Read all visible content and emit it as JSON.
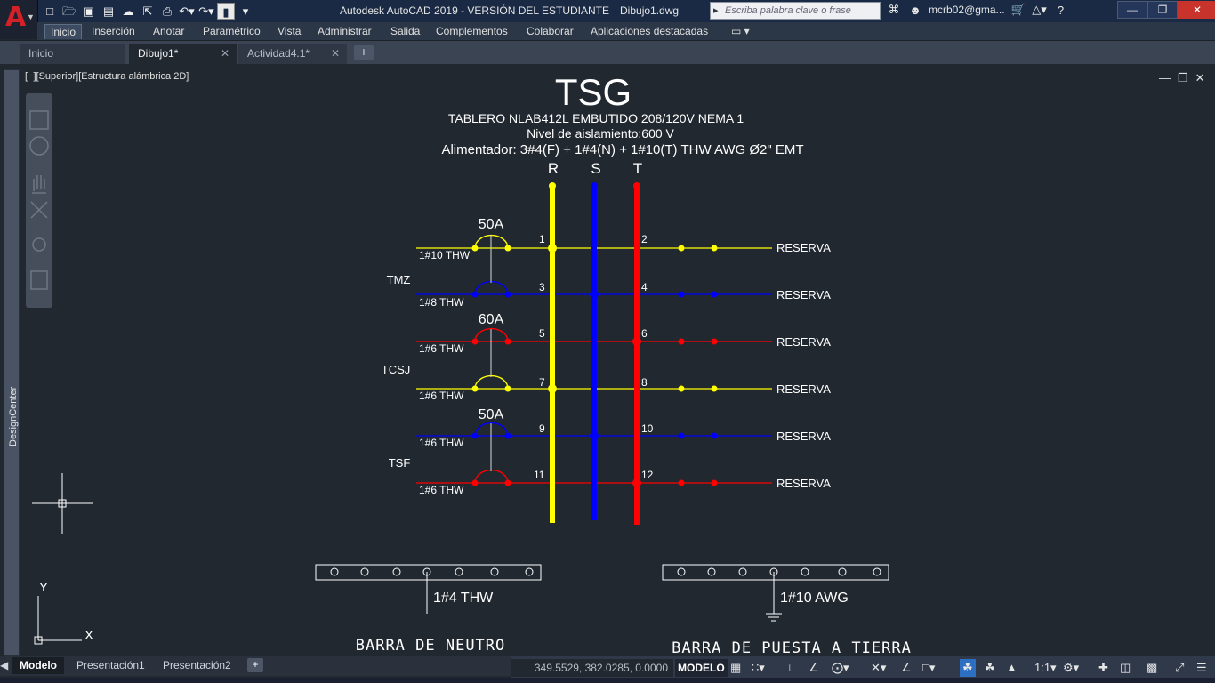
{
  "app": {
    "logo_letter": "A",
    "title": "Autodesk AutoCAD 2019 - VERSIÓN DEL ESTUDIANTE",
    "document": "Dibujo1.dwg",
    "search_placeholder": "Escriba palabra clave o frase",
    "user": "mcrb02@gma...",
    "help": "?"
  },
  "qat_icons": [
    "new-icon",
    "open-icon",
    "save-icon",
    "save-as-icon",
    "cloud-icon",
    "export-icon",
    "print-icon",
    "undo-icon",
    "redo-icon",
    "workspace-icon",
    "caret-icon"
  ],
  "ribbon_tabs": [
    "Inicio",
    "Inserción",
    "Anotar",
    "Paramétrico",
    "Vista",
    "Administrar",
    "Salida",
    "Complementos",
    "Colaborar",
    "Aplicaciones destacadas"
  ],
  "doc_tabs": [
    {
      "label": "Inicio",
      "active": false
    },
    {
      "label": "Dibujo1*",
      "active": true
    },
    {
      "label": "Actividad4.1*",
      "active": false
    }
  ],
  "side_panel": "DesignCenter",
  "viewport_label": "[−][Superior][Estructura alámbrica 2D]",
  "drawing": {
    "title": "TSG",
    "subtitle1": "TABLERO NLAB412L EMBUTIDO 208/120V NEMA 1",
    "subtitle2": "Nivel de aislamiento:600 V",
    "subtitle3": "Alimentador: 3#4(F) + 1#4(N) + 1#10(T) THW AWG Ø2\" EMT",
    "phases": [
      "R",
      "S",
      "T"
    ],
    "breakers": [
      "50A",
      "60A",
      "50A"
    ],
    "groups": [
      "TMZ",
      "TCSJ",
      "TSF"
    ],
    "circuits_left": [
      {
        "num": "1",
        "wire": "1#10 THW",
        "color": "#ffff00"
      },
      {
        "num": "3",
        "wire": "1#8 THW",
        "color": "#0000ff"
      },
      {
        "num": "5",
        "wire": "1#6 THW",
        "color": "#ff0000"
      },
      {
        "num": "7",
        "wire": "1#6 THW",
        "color": "#ffff00"
      },
      {
        "num": "9",
        "wire": "1#6 THW",
        "color": "#0000ff"
      },
      {
        "num": "11",
        "wire": "1#6 THW",
        "color": "#ff0000"
      }
    ],
    "circuits_right": [
      {
        "num": "2",
        "label": "RESERVA"
      },
      {
        "num": "4",
        "label": "RESERVA"
      },
      {
        "num": "6",
        "label": "RESERVA"
      },
      {
        "num": "8",
        "label": "RESERVA"
      },
      {
        "num": "10",
        "label": "RESERVA"
      },
      {
        "num": "12",
        "label": "RESERVA"
      }
    ],
    "neutral_wire": "1#4 THW",
    "ground_wire": "1#10 AWG",
    "neutral_bar": "BARRA DE NEUTRO",
    "ground_bar": "BARRA DE PUESTA A TIERRA",
    "ucs_y": "Y",
    "ucs_x": "X"
  },
  "layout_tabs": [
    {
      "label": "Modelo",
      "active": true
    },
    {
      "label": "Presentación1",
      "active": false
    },
    {
      "label": "Presentación2",
      "active": false
    }
  ],
  "status": {
    "coords": "349.5529, 382.0285, 0.0000",
    "model": "MODELO",
    "scale": "1:1"
  },
  "colors": {
    "red": "#ff0000",
    "yellow": "#ffff00",
    "blue": "#0000ff",
    "bg": "#212830",
    "white": "#ffffff"
  }
}
